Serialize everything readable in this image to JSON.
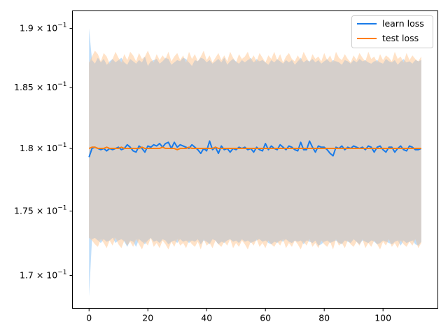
{
  "chart_data": {
    "type": "line",
    "title": "",
    "xlabel": "",
    "ylabel": "",
    "xlim": [
      -5.65,
      118.65
    ],
    "ylim": [
      0.1675,
      0.1915
    ],
    "y_scale": "log",
    "grid": false,
    "legend_position": "top-right",
    "x_ticks": [
      0,
      20,
      40,
      60,
      80,
      100
    ],
    "x_tick_labels": [
      "0",
      "20",
      "40",
      "60",
      "80",
      "100"
    ],
    "y_ticks": [
      0.17,
      0.175,
      0.18,
      0.185,
      0.19
    ],
    "y_tick_labels": [
      {
        "mant": "1.7",
        "base": "10",
        "exp": "−1"
      },
      {
        "mant": "1.75",
        "base": "10",
        "exp": "−1"
      },
      {
        "mant": "1.8",
        "base": "10",
        "exp": "−1"
      },
      {
        "mant": "1.85",
        "base": "10",
        "exp": "−1"
      },
      {
        "mant": "1.9",
        "base": "10",
        "exp": "−1"
      }
    ],
    "series": [
      {
        "name": "learn loss",
        "color": "#1f77b4",
        "line_color": "#1a7be8",
        "band_color": "#8ec4f5",
        "values": [
          0.1793,
          0.18,
          0.1801,
          0.18,
          0.1799,
          0.18,
          0.1798,
          0.18,
          0.1799,
          0.18,
          0.1801,
          0.1799,
          0.18,
          0.1803,
          0.1801,
          0.1798,
          0.1797,
          0.1802,
          0.18,
          0.1797,
          0.1802,
          0.1801,
          0.1803,
          0.1802,
          0.1804,
          0.1801,
          0.1804,
          0.1805,
          0.18,
          0.1805,
          0.1801,
          0.1803,
          0.1802,
          0.1801,
          0.18,
          0.1803,
          0.1801,
          0.1799,
          0.1796,
          0.18,
          0.1798,
          0.1806,
          0.1799,
          0.1801,
          0.1796,
          0.1802,
          0.1799,
          0.18,
          0.1797,
          0.18,
          0.1799,
          0.1801,
          0.18,
          0.1801,
          0.1799,
          0.18,
          0.1797,
          0.1801,
          0.1799,
          0.1798,
          0.1804,
          0.1799,
          0.1802,
          0.18,
          0.1799,
          0.1803,
          0.1801,
          0.1799,
          0.1802,
          0.1801,
          0.1799,
          0.1798,
          0.1805,
          0.1799,
          0.1799,
          0.1806,
          0.1801,
          0.1797,
          0.1802,
          0.1801,
          0.1801,
          0.1799,
          0.1796,
          0.1794,
          0.1801,
          0.18,
          0.1802,
          0.1799,
          0.1801,
          0.18,
          0.1802,
          0.1801,
          0.18,
          0.1801,
          0.1799,
          0.1802,
          0.1801,
          0.1797,
          0.1801,
          0.1802,
          0.1799,
          0.1797,
          0.1801,
          0.1801,
          0.1797,
          0.18,
          0.1802,
          0.1799,
          0.1798,
          0.1802,
          0.1801,
          0.1799,
          0.1799,
          0.18
        ],
        "upper": [
          0.19,
          0.1873,
          0.187,
          0.1875,
          0.1871,
          0.1874,
          0.1869,
          0.1872,
          0.1874,
          0.1871,
          0.1873,
          0.1875,
          0.1871,
          0.1869,
          0.1874,
          0.1872,
          0.187,
          0.1873,
          0.1871,
          0.1876,
          0.1868,
          0.1872,
          0.1873,
          0.1874,
          0.187,
          0.1872,
          0.1875,
          0.1874,
          0.1869,
          0.1871,
          0.1873,
          0.1872,
          0.1875,
          0.1874,
          0.1871,
          0.1868,
          0.1873,
          0.1872,
          0.1875,
          0.1874,
          0.1871,
          0.1873,
          0.187,
          0.1872,
          0.1874,
          0.1871,
          0.1875,
          0.1869,
          0.1872,
          0.1874,
          0.1872,
          0.187,
          0.1873,
          0.1871,
          0.1873,
          0.1875,
          0.1871,
          0.1874,
          0.1872,
          0.1873,
          0.1871,
          0.1869,
          0.1873,
          0.1871,
          0.1874,
          0.1872,
          0.187,
          0.1873,
          0.1871,
          0.1873,
          0.1869,
          0.1872,
          0.1875,
          0.1871,
          0.1873,
          0.1872,
          0.1874,
          0.1871,
          0.1873,
          0.187,
          0.1872,
          0.1874,
          0.1871,
          0.1873,
          0.1872,
          0.1871,
          0.1869,
          0.1873,
          0.1872,
          0.187,
          0.1873,
          0.1871,
          0.1874,
          0.1872,
          0.1873,
          0.1871,
          0.187,
          0.1872,
          0.1873,
          0.1871,
          0.187,
          0.1874,
          0.1872,
          0.1871,
          0.1873,
          0.1869,
          0.1872,
          0.1874,
          0.1871,
          0.1872,
          0.187,
          0.1873,
          0.1872,
          0.1873
        ],
        "lower": [
          0.1684,
          0.1728,
          0.1729,
          0.1727,
          0.1725,
          0.1728,
          0.1726,
          0.1727,
          0.1729,
          0.1725,
          0.1727,
          0.1728,
          0.1726,
          0.1722,
          0.1727,
          0.1726,
          0.1722,
          0.1728,
          0.1726,
          0.1724,
          0.1727,
          0.1729,
          0.1726,
          0.1727,
          0.1725,
          0.1728,
          0.1727,
          0.1724,
          0.1726,
          0.1727,
          0.1725,
          0.1728,
          0.1726,
          0.1727,
          0.1725,
          0.1727,
          0.1726,
          0.1728,
          0.1724,
          0.1727,
          0.1726,
          0.1724,
          0.1728,
          0.1727,
          0.1724,
          0.1726,
          0.1725,
          0.1727,
          0.1728,
          0.1726,
          0.1727,
          0.1725,
          0.1728,
          0.1726,
          0.1727,
          0.1725,
          0.1726,
          0.1727,
          0.1728,
          0.1726,
          0.1727,
          0.1725,
          0.1724,
          0.1726,
          0.1725,
          0.1727,
          0.1726,
          0.1728,
          0.1726,
          0.1725,
          0.1727,
          0.1726,
          0.1727,
          0.1724,
          0.1727,
          0.1726,
          0.1725,
          0.1727,
          0.1723,
          0.1724,
          0.1726,
          0.1727,
          0.1725,
          0.1726,
          0.1727,
          0.1725,
          0.1724,
          0.1727,
          0.1726,
          0.1725,
          0.1728,
          0.1726,
          0.1724,
          0.1727,
          0.1726,
          0.1725,
          0.1727,
          0.1726,
          0.1724,
          0.1725,
          0.1727,
          0.1726,
          0.1725,
          0.1724,
          0.1726,
          0.1727,
          0.1723,
          0.1727,
          0.1725,
          0.1726,
          0.1727,
          0.1724,
          0.1723,
          0.1726
        ]
      },
      {
        "name": "test loss",
        "color": "#ff7f0e",
        "line_color": "#ff7f0e",
        "band_color": "#ffc690",
        "values": [
          0.18,
          0.1801,
          0.1801,
          0.18,
          0.18,
          0.18,
          0.1801,
          0.18,
          0.18,
          0.18,
          0.18,
          0.1801,
          0.18,
          0.18,
          0.18,
          0.18,
          0.18,
          0.18,
          0.1801,
          0.18,
          0.18,
          0.18,
          0.18,
          0.18,
          0.18,
          0.1801,
          0.18,
          0.18,
          0.18,
          0.18,
          0.1799,
          0.18,
          0.18,
          0.18,
          0.1801,
          0.18,
          0.18,
          0.18,
          0.18,
          0.18,
          0.18,
          0.18,
          0.18,
          0.1801,
          0.18,
          0.18,
          0.18,
          0.18,
          0.18,
          0.18,
          0.18,
          0.18,
          0.18,
          0.18,
          0.18,
          0.18,
          0.18,
          0.18,
          0.18,
          0.18,
          0.18,
          0.18,
          0.18,
          0.18,
          0.18,
          0.18,
          0.18,
          0.18,
          0.18,
          0.18,
          0.18,
          0.18,
          0.18,
          0.18,
          0.18,
          0.18,
          0.18,
          0.18,
          0.18,
          0.18,
          0.18,
          0.18,
          0.18,
          0.18,
          0.18,
          0.18,
          0.18,
          0.18,
          0.18,
          0.18,
          0.18,
          0.18,
          0.18,
          0.18,
          0.18,
          0.18,
          0.18,
          0.18,
          0.18,
          0.18,
          0.18,
          0.18,
          0.18,
          0.18,
          0.18,
          0.18,
          0.18,
          0.18,
          0.18,
          0.18,
          0.18,
          0.18,
          0.18,
          0.18
        ],
        "upper": [
          0.1871,
          0.1876,
          0.1881,
          0.1878,
          0.1872,
          0.1879,
          0.1876,
          0.187,
          0.1874,
          0.188,
          0.1875,
          0.1871,
          0.1878,
          0.1873,
          0.188,
          0.1877,
          0.1872,
          0.1879,
          0.1874,
          0.1876,
          0.1881,
          0.1875,
          0.1871,
          0.1878,
          0.1873,
          0.1877,
          0.1874,
          0.188,
          0.1872,
          0.1876,
          0.1879,
          0.1873,
          0.1877,
          0.1871,
          0.188,
          0.1874,
          0.1878,
          0.1872,
          0.1876,
          0.1881,
          0.1873,
          0.1877,
          0.1871,
          0.1875,
          0.1879,
          0.1873,
          0.1877,
          0.1872,
          0.188,
          0.1875,
          0.1871,
          0.1878,
          0.1874,
          0.1876,
          0.188,
          0.1873,
          0.1877,
          0.1872,
          0.1879,
          0.1875,
          0.1871,
          0.1877,
          0.1874,
          0.188,
          0.1873,
          0.1878,
          0.1871,
          0.1876,
          0.1879,
          0.1874,
          0.1872,
          0.1877,
          0.1873,
          0.188,
          0.1875,
          0.1871,
          0.1878,
          0.1874,
          0.1876,
          0.1872,
          0.1879,
          0.1873,
          0.1877,
          0.1871,
          0.188,
          0.1875,
          0.1873,
          0.1878,
          0.1874,
          0.1871,
          0.1877,
          0.1873,
          0.1879,
          0.1875,
          0.1872,
          0.188,
          0.1874,
          0.1876,
          0.1871,
          0.1878,
          0.1873,
          0.1877,
          0.1875,
          0.1872,
          0.188,
          0.1874,
          0.1876,
          0.1871,
          0.1879,
          0.1873,
          0.1877,
          0.1874,
          0.1872,
          0.1876
        ],
        "lower": [
          0.1729,
          0.1727,
          0.1724,
          0.1722,
          0.1728,
          0.1725,
          0.1721,
          0.1727,
          0.1723,
          0.1729,
          0.1724,
          0.1721,
          0.1727,
          0.1723,
          0.1726,
          0.1722,
          0.1728,
          0.1724,
          0.172,
          0.1726,
          0.1723,
          0.1729,
          0.1722,
          0.1725,
          0.1721,
          0.1727,
          0.1724,
          0.172,
          0.1726,
          0.1722,
          0.1728,
          0.1723,
          0.1725,
          0.1721,
          0.1727,
          0.1724,
          0.1722,
          0.1726,
          0.172,
          0.1728,
          0.1723,
          0.1725,
          0.1721,
          0.1727,
          0.1724,
          0.1722,
          0.1726,
          0.1723,
          0.1728,
          0.1721,
          0.1725,
          0.1722,
          0.1727,
          0.1724,
          0.172,
          0.1726,
          0.1723,
          0.1728,
          0.1722,
          0.1725,
          0.1721,
          0.1727,
          0.1724,
          0.1722,
          0.1726,
          0.1723,
          0.1728,
          0.1721,
          0.1725,
          0.1722,
          0.1727,
          0.1724,
          0.172,
          0.1726,
          0.1723,
          0.1728,
          0.1722,
          0.1725,
          0.1721,
          0.1727,
          0.1724,
          0.1722,
          0.1726,
          0.172,
          0.1728,
          0.1723,
          0.1725,
          0.1721,
          0.1727,
          0.1724,
          0.1722,
          0.1726,
          0.1723,
          0.1728,
          0.1721,
          0.1725,
          0.1722,
          0.1727,
          0.1724,
          0.172,
          0.1726,
          0.1723,
          0.1728,
          0.1722,
          0.1725,
          0.1721,
          0.1727,
          0.1724,
          0.1722,
          0.1726,
          0.1723,
          0.1728,
          0.1721,
          0.1725
        ]
      }
    ]
  }
}
